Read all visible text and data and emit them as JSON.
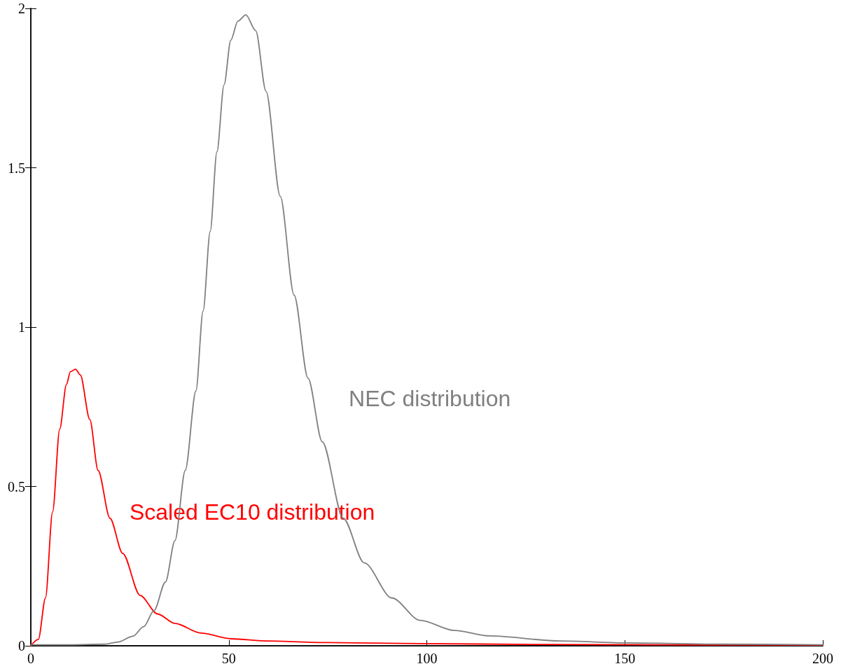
{
  "chart_data": {
    "type": "line",
    "xlim": [
      0,
      200
    ],
    "xticks": [
      0,
      50,
      100,
      150,
      200
    ],
    "ylim": [
      0,
      2
    ],
    "yticks": [
      0,
      0.5,
      1,
      1.5,
      2
    ],
    "grid": false,
    "legend": false,
    "marker": "none",
    "line_style": "solid",
    "series": [
      {
        "name": "Scaled EC10 distribution",
        "color": "#ff0000",
        "x": [
          0,
          1.9,
          3.7,
          5.5,
          7.3,
          9,
          10,
          11.3,
          12.5,
          14.9,
          17,
          20,
          23.2,
          27.6,
          32,
          36.4,
          43,
          50.6,
          60,
          75,
          98,
          130,
          160,
          200
        ],
        "values": [
          0,
          0.02,
          0.15,
          0.42,
          0.68,
          0.82,
          0.86,
          0.868,
          0.85,
          0.71,
          0.55,
          0.4,
          0.29,
          0.158,
          0.1,
          0.07,
          0.04,
          0.022,
          0.015,
          0.01,
          0.007,
          0.004,
          0.003,
          0.002
        ]
      },
      {
        "name": "NEC distribution",
        "color": "#808080",
        "x": [
          0,
          10,
          18.7,
          22,
          25.8,
          28.5,
          31.1,
          34,
          36.4,
          39,
          41.7,
          43.5,
          45.3,
          47,
          48.8,
          50.5,
          52.3,
          54.3,
          56.8,
          59.4,
          63,
          66.5,
          70,
          73.6,
          78.9,
          84.2,
          91.2,
          98.3,
          107,
          116,
          133.7,
          151,
          175,
          200
        ],
        "values": [
          0.003,
          0.003,
          0.005,
          0.012,
          0.03,
          0.06,
          0.11,
          0.2,
          0.33,
          0.55,
          0.8,
          1.05,
          1.3,
          1.55,
          1.76,
          1.9,
          1.96,
          1.98,
          1.93,
          1.74,
          1.41,
          1.1,
          0.84,
          0.64,
          0.4,
          0.26,
          0.15,
          0.08,
          0.048,
          0.031,
          0.015,
          0.009,
          0.005,
          0.003
        ]
      }
    ]
  }
}
